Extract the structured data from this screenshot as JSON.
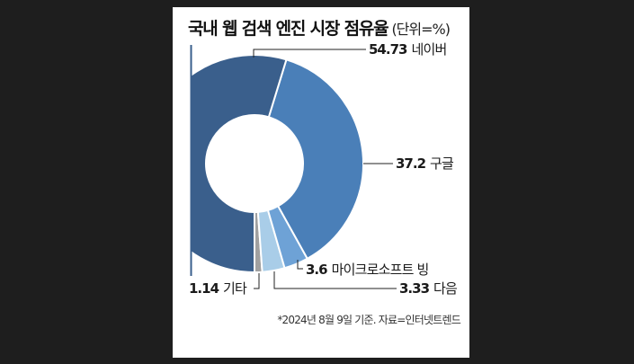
{
  "title": "국내 웹 검색 엔진 시장 점유율",
  "unit": "(단위=%)",
  "footnote": "*2024년 8월 9일 기준. 자료=인터넷트렌드",
  "labels": {
    "naver": {
      "value": "54.73",
      "name": "네이버"
    },
    "google": {
      "value": "37.2",
      "name": "구글"
    },
    "bing": {
      "value": "3.6",
      "name": "마이크로소프트 빙"
    },
    "daum": {
      "value": "3.33",
      "name": "다음"
    },
    "etc": {
      "value": "1.14",
      "name": "기타"
    }
  },
  "colors": {
    "naver": "#3a5f8c",
    "google": "#4a7fb8",
    "bing": "#6ea2d6",
    "daum": "#a9cde8",
    "etc": "#a0a0a0",
    "background": "#1e1e1e"
  },
  "chart_data": {
    "type": "pie",
    "subtype": "donut",
    "title": "국내 웹 검색 엔진 시장 점유율",
    "unit": "%",
    "categories": [
      "네이버",
      "구글",
      "마이크로소프트 빙",
      "다음",
      "기타"
    ],
    "values": [
      54.73,
      37.2,
      3.6,
      3.33,
      1.14
    ],
    "colors": [
      "#3a5f8c",
      "#4a7fb8",
      "#6ea2d6",
      "#a9cde8",
      "#a0a0a0"
    ],
    "annotation": "*2024년 8월 9일 기준. 자료=인터넷트렌드",
    "legend": "none (direct labels with leader lines)"
  }
}
